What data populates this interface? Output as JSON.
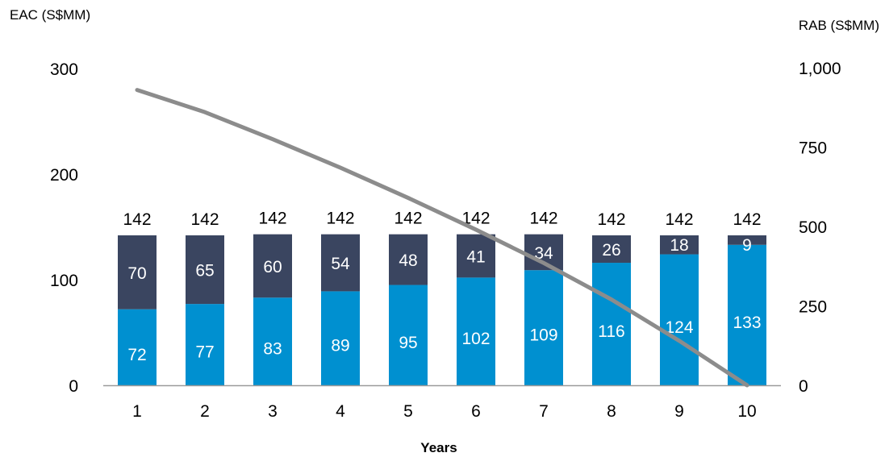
{
  "chart_data": {
    "type": "bar",
    "stacked": true,
    "categories": [
      "1",
      "2",
      "3",
      "4",
      "5",
      "6",
      "7",
      "8",
      "9",
      "10"
    ],
    "series": [
      {
        "values": [
          72,
          77,
          83,
          89,
          95,
          102,
          109,
          116,
          124,
          133
        ],
        "color": "#0090d0"
      },
      {
        "values": [
          70,
          65,
          60,
          54,
          48,
          41,
          34,
          26,
          18,
          9
        ],
        "color": "#3a4560"
      }
    ],
    "totals": [
      142,
      142,
      142,
      142,
      142,
      142,
      142,
      142,
      142,
      142
    ],
    "line": {
      "axis": "right",
      "values": [
        930,
        860,
        775,
        685,
        590,
        490,
        385,
        270,
        140,
        0
      ],
      "color": "#8c8c8c"
    },
    "xlabel": "Years",
    "ylabel": "EAC (S$MM)",
    "ylabel_right": "RAB (S$MM)",
    "ylim": [
      0,
      300
    ],
    "ylim_right": [
      0,
      1000
    ],
    "y_ticks": [
      "0",
      "100",
      "200",
      "300"
    ],
    "y_ticks_right": [
      "0",
      "250",
      "500",
      "750",
      "1,000"
    ],
    "grid": false,
    "legend": "none"
  }
}
